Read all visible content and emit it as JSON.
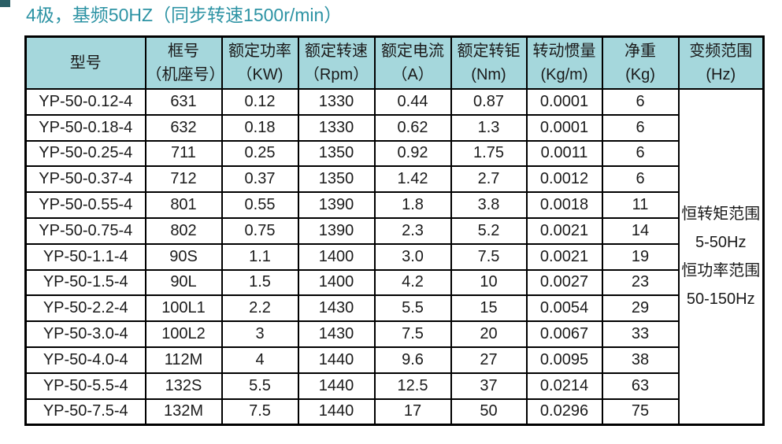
{
  "title": "4极，基频50HZ（同步转速1500r/min）",
  "colors": {
    "title_text": "#2d93a4",
    "header_bg": "#a5d7dc",
    "border": "#000000",
    "corner_mark": "#2a5f66",
    "body_text": "#1a1a1a"
  },
  "table": {
    "headers": [
      {
        "line1": "型号",
        "line2": ""
      },
      {
        "line1": "框号",
        "line2": "（机座号）"
      },
      {
        "line1": "额定功率",
        "line2": "（KW)"
      },
      {
        "line1": "额定转速",
        "line2": "（Rpm）"
      },
      {
        "line1": "额定电流",
        "line2": "（A）"
      },
      {
        "line1": "额定转钜",
        "line2": "(Nm)"
      },
      {
        "line1": "转动惯量",
        "line2": "(Kg/m)"
      },
      {
        "line1": "净重",
        "line2": "(Kg)"
      },
      {
        "line1": "变频范围",
        "line2": "(Hz)"
      }
    ],
    "column_keys": [
      "model",
      "frame",
      "power",
      "speed",
      "current",
      "torque",
      "inertia",
      "weight"
    ],
    "rows": [
      [
        "YP-50-0.12-4",
        "631",
        "0.12",
        "1330",
        "0.44",
        "0.87",
        "0.0001",
        "6"
      ],
      [
        "YP-50-0.18-4",
        "632",
        "0.18",
        "1330",
        "0.62",
        "1.3",
        "0.0001",
        "6"
      ],
      [
        "YP-50-0.25-4",
        "711",
        "0.25",
        "1350",
        "0.92",
        "1.75",
        "0.0011",
        "6"
      ],
      [
        "YP-50-0.37-4",
        "712",
        "0.37",
        "1350",
        "1.42",
        "2.7",
        "0.0012",
        "6"
      ],
      [
        "YP-50-0.55-4",
        "801",
        "0.55",
        "1390",
        "1.8",
        "3.8",
        "0.0018",
        "11"
      ],
      [
        "YP-50-0.75-4",
        "802",
        "0.75",
        "1390",
        "2.3",
        "5.2",
        "0.0021",
        "14"
      ],
      [
        "YP-50-1.1-4",
        "90S",
        "1.1",
        "1400",
        "3.0",
        "7.5",
        "0.0021",
        "19"
      ],
      [
        "YP-50-1.5-4",
        "90L",
        "1.5",
        "1400",
        "4.2",
        "10",
        "0.0027",
        "23"
      ],
      [
        "YP-50-2.2-4",
        "100L1",
        "2.2",
        "1430",
        "5.5",
        "15",
        "0.0054",
        "29"
      ],
      [
        "YP-50-3.0-4",
        "100L2",
        "3",
        "1430",
        "7.5",
        "20",
        "0.0067",
        "33"
      ],
      [
        "YP-50-4.0-4",
        "112M",
        "4",
        "1440",
        "9.6",
        "27",
        "0.0095",
        "38"
      ],
      [
        "YP-50-5.5-4",
        "132S",
        "5.5",
        "1440",
        "12.5",
        "37",
        "0.0214",
        "63"
      ],
      [
        "YP-50-7.5-4",
        "132M",
        "7.5",
        "1440",
        "17",
        "50",
        "0.0296",
        "75"
      ]
    ],
    "freq_range_lines": [
      "恒转矩范围",
      "5-50Hz",
      "恒功率范围",
      "50-150Hz"
    ]
  }
}
